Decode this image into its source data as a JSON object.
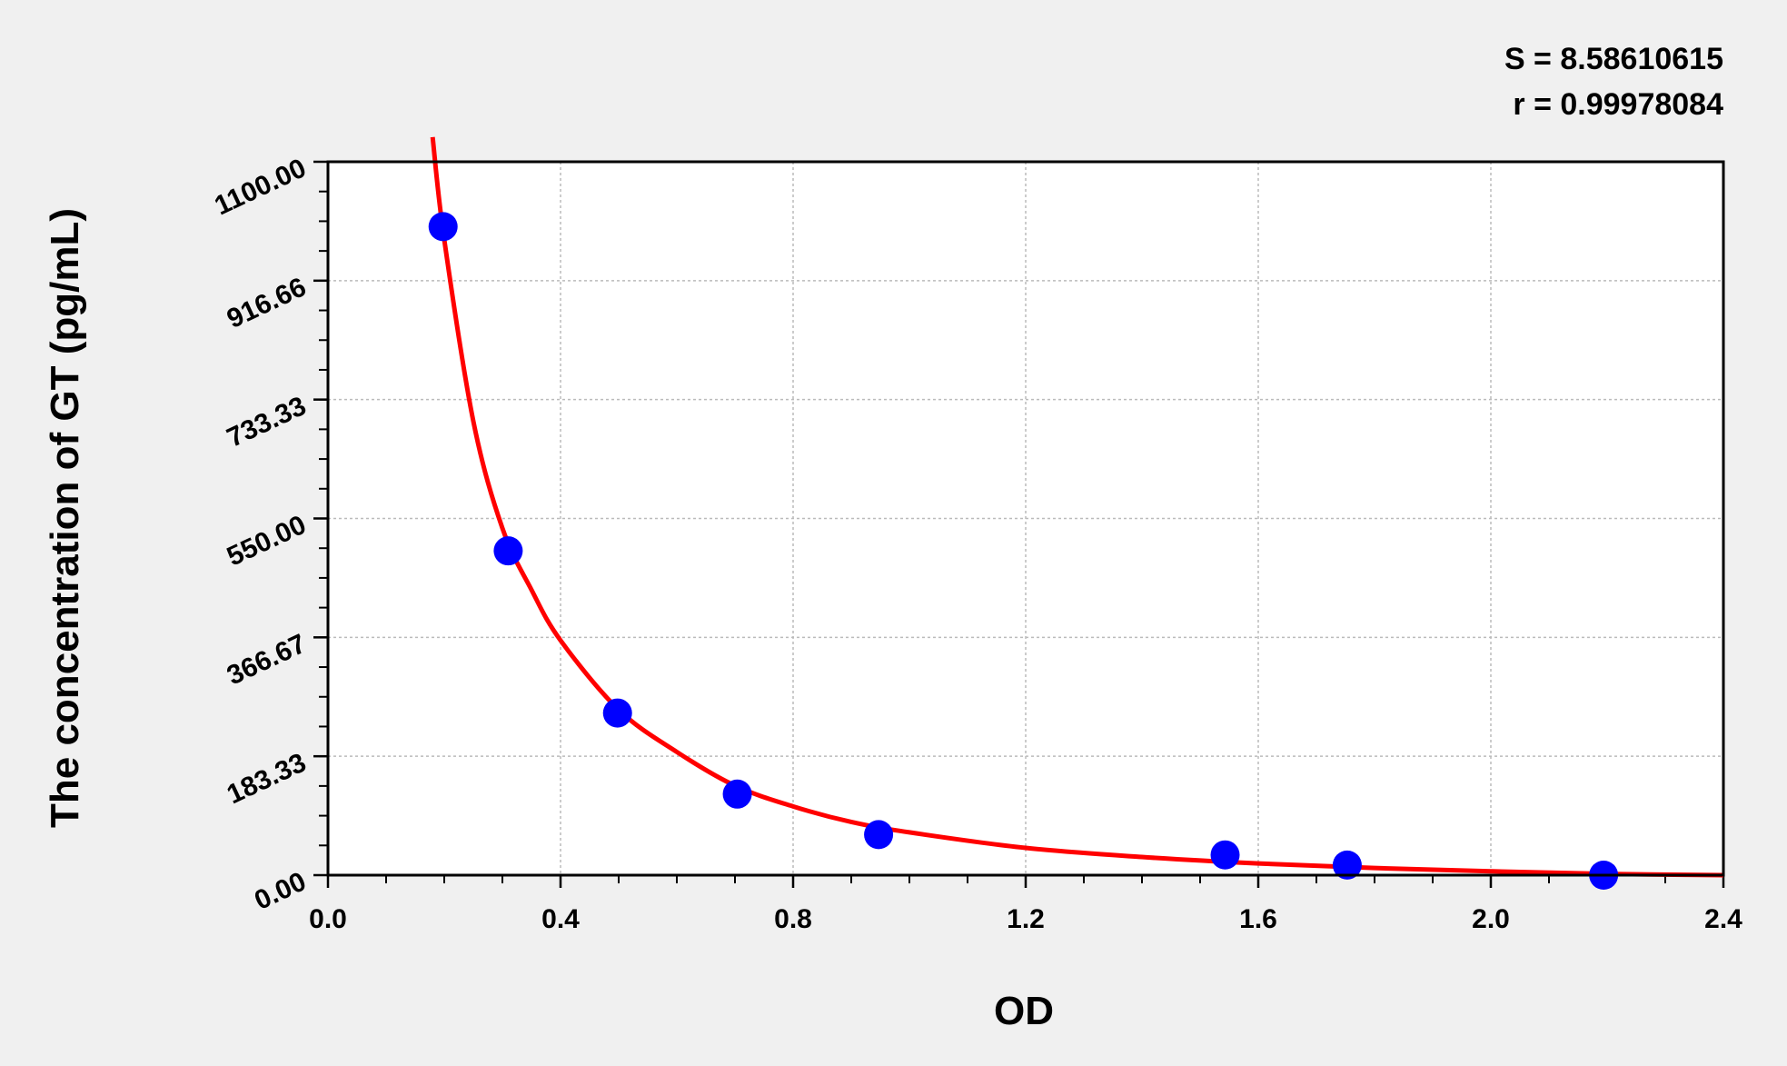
{
  "chart_data": {
    "type": "scatter",
    "xlabel": "OD",
    "ylabel": "The concentration of  GT (pg/mL)",
    "xlim": [
      0.0,
      2.4
    ],
    "ylim": [
      0.0,
      1100.0
    ],
    "x_ticks": [
      "0.0",
      "0.4",
      "0.8",
      "1.2",
      "1.6",
      "2.0",
      "2.4"
    ],
    "y_ticks": [
      "0.00",
      "183.33",
      "366.67",
      "550.00",
      "733.33",
      "916.66",
      "1100.00"
    ],
    "grid": true,
    "annotations": [
      "S = 8.58610615",
      "r = 0.99978084"
    ],
    "points": {
      "color": "#0000ff",
      "x": [
        0.198,
        0.31,
        0.498,
        0.704,
        0.947,
        1.543,
        1.753,
        2.194
      ],
      "y": [
        1000,
        500,
        250,
        125,
        62.5,
        31.25,
        15.63,
        0
      ]
    },
    "fit_curve": {
      "color": "#ff0000",
      "x": [
        0.18,
        0.2,
        0.25,
        0.3,
        0.35,
        0.4,
        0.5,
        0.6,
        0.7,
        0.8,
        0.9,
        1.0,
        1.2,
        1.4,
        1.6,
        1.8,
        2.0,
        2.2,
        2.4
      ],
      "y": [
        1138,
        980,
        700,
        535,
        440,
        362,
        255,
        190,
        138,
        106,
        82,
        66,
        42,
        28,
        18,
        11,
        6,
        2,
        0
      ]
    }
  }
}
